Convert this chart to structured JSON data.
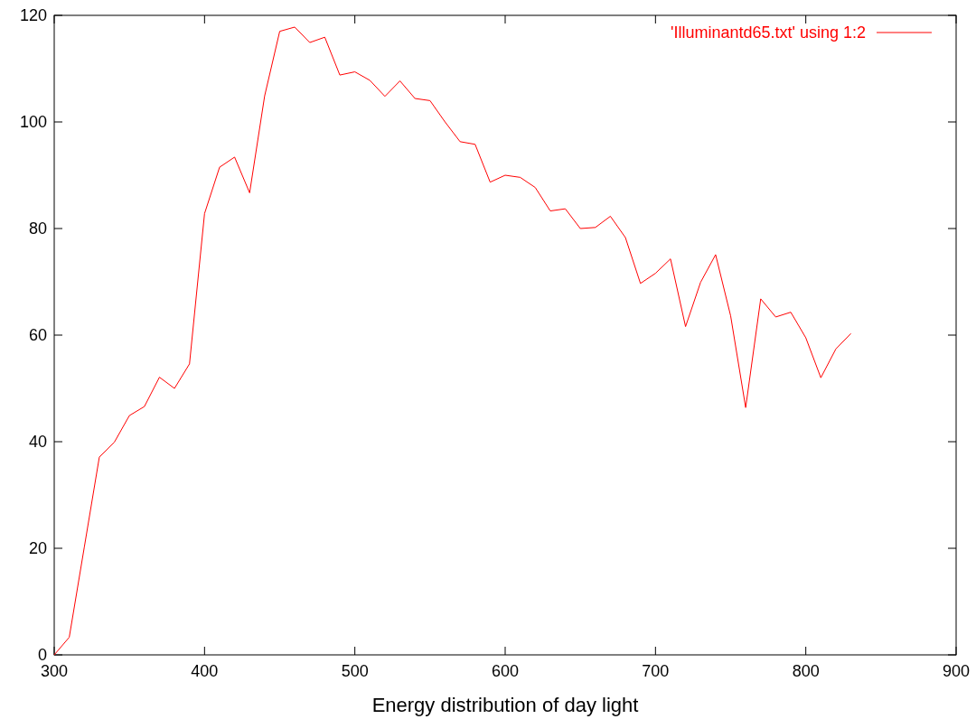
{
  "chart_data": {
    "type": "line",
    "xlabel": "Energy distribution of day light",
    "x": [
      300,
      310,
      320,
      330,
      340,
      350,
      360,
      370,
      380,
      390,
      400,
      410,
      420,
      430,
      440,
      450,
      460,
      470,
      480,
      490,
      500,
      510,
      520,
      530,
      540,
      550,
      560,
      570,
      580,
      590,
      600,
      610,
      620,
      630,
      640,
      650,
      660,
      670,
      680,
      690,
      700,
      710,
      720,
      730,
      740,
      750,
      760,
      770,
      780,
      790,
      800,
      810,
      820,
      830
    ],
    "series": [
      {
        "name": "'Illuminantd65.txt' using 1:2",
        "color": "#ff0000",
        "values": [
          0.0,
          3.3,
          20.2,
          37.1,
          39.9,
          44.9,
          46.6,
          52.1,
          50.0,
          54.6,
          82.8,
          91.5,
          93.4,
          86.7,
          104.9,
          117.0,
          117.8,
          114.9,
          115.9,
          108.8,
          109.4,
          107.8,
          104.8,
          107.7,
          104.4,
          104.0,
          100.0,
          96.3,
          95.8,
          88.7,
          90.0,
          89.6,
          87.7,
          83.3,
          83.7,
          80.0,
          80.2,
          82.3,
          78.3,
          69.7,
          71.6,
          74.3,
          61.6,
          69.9,
          75.1,
          63.6,
          46.4,
          66.8,
          63.4,
          64.3,
          59.5,
          52.0,
          57.4,
          60.3
        ]
      }
    ],
    "xlim": [
      300,
      900
    ],
    "xticks": [
      300,
      400,
      500,
      600,
      700,
      800,
      900
    ],
    "ylim": [
      0,
      120
    ],
    "yticks": [
      0,
      20,
      40,
      60,
      80,
      100,
      120
    ],
    "grid": false,
    "legend": "top right"
  }
}
